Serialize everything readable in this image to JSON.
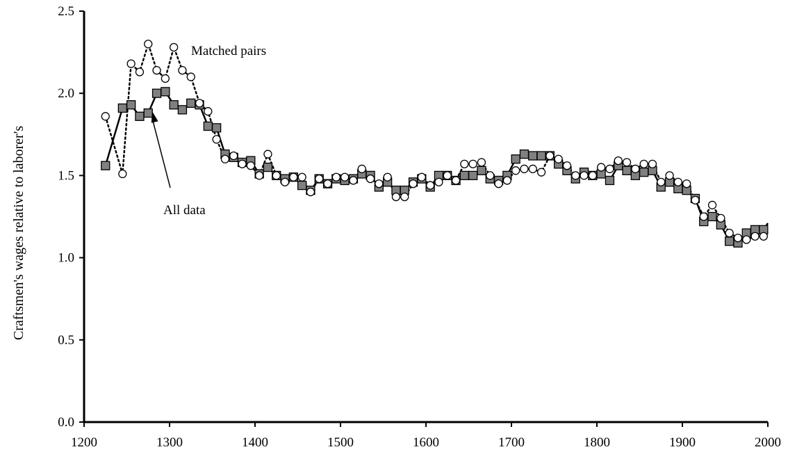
{
  "chart_data": {
    "type": "line",
    "title": "",
    "xlabel": "",
    "ylabel": "Craftsmen's wages relative to laborer's",
    "xlim": [
      1200,
      2000
    ],
    "ylim": [
      0,
      2.5
    ],
    "xticks": [
      "1200",
      "1300",
      "1400",
      "1500",
      "1600",
      "1700",
      "1800",
      "1900",
      "2000"
    ],
    "yticks": [
      "0.0",
      "0.5",
      "1.0",
      "1.5",
      "2.0",
      "2.5"
    ],
    "grid": false,
    "legend": "none",
    "annotations": [
      {
        "text": "Matched pairs",
        "series": "matched"
      },
      {
        "text": "All data",
        "series": "all"
      }
    ],
    "series": [
      {
        "key": "all",
        "marker": "square",
        "line": "solid",
        "color": "#808080",
        "points": [
          [
            1225,
            1.56
          ],
          [
            1245,
            1.91
          ],
          [
            1255,
            1.93
          ],
          [
            1265,
            1.86
          ],
          [
            1275,
            1.88
          ],
          [
            1285,
            2.0
          ],
          [
            1295,
            2.01
          ],
          [
            1305,
            1.93
          ],
          [
            1315,
            1.9
          ],
          [
            1325,
            1.94
          ],
          [
            1335,
            1.93
          ],
          [
            1345,
            1.8
          ],
          [
            1355,
            1.79
          ],
          [
            1365,
            1.63
          ],
          [
            1375,
            1.61
          ],
          [
            1385,
            1.58
          ],
          [
            1395,
            1.59
          ],
          [
            1405,
            1.51
          ],
          [
            1415,
            1.55
          ],
          [
            1425,
            1.5
          ],
          [
            1435,
            1.48
          ],
          [
            1445,
            1.49
          ],
          [
            1455,
            1.44
          ],
          [
            1465,
            1.41
          ],
          [
            1475,
            1.48
          ],
          [
            1485,
            1.45
          ],
          [
            1495,
            1.48
          ],
          [
            1505,
            1.47
          ],
          [
            1515,
            1.48
          ],
          [
            1525,
            1.51
          ],
          [
            1535,
            1.5
          ],
          [
            1545,
            1.43
          ],
          [
            1555,
            1.46
          ],
          [
            1565,
            1.41
          ],
          [
            1575,
            1.41
          ],
          [
            1585,
            1.46
          ],
          [
            1595,
            1.48
          ],
          [
            1605,
            1.43
          ],
          [
            1615,
            1.5
          ],
          [
            1625,
            1.5
          ],
          [
            1635,
            1.47
          ],
          [
            1645,
            1.5
          ],
          [
            1655,
            1.5
          ],
          [
            1665,
            1.53
          ],
          [
            1675,
            1.48
          ],
          [
            1685,
            1.47
          ],
          [
            1695,
            1.5
          ],
          [
            1705,
            1.6
          ],
          [
            1715,
            1.63
          ],
          [
            1725,
            1.62
          ],
          [
            1735,
            1.62
          ],
          [
            1745,
            1.62
          ],
          [
            1755,
            1.57
          ],
          [
            1765,
            1.53
          ],
          [
            1775,
            1.48
          ],
          [
            1785,
            1.52
          ],
          [
            1795,
            1.5
          ],
          [
            1805,
            1.51
          ],
          [
            1815,
            1.47
          ],
          [
            1825,
            1.56
          ],
          [
            1835,
            1.53
          ],
          [
            1845,
            1.5
          ],
          [
            1855,
            1.52
          ],
          [
            1865,
            1.53
          ],
          [
            1875,
            1.43
          ],
          [
            1885,
            1.46
          ],
          [
            1895,
            1.42
          ],
          [
            1905,
            1.41
          ],
          [
            1915,
            1.36
          ],
          [
            1925,
            1.22
          ],
          [
            1935,
            1.25
          ],
          [
            1945,
            1.2
          ],
          [
            1955,
            1.1
          ],
          [
            1965,
            1.09
          ],
          [
            1975,
            1.15
          ],
          [
            1985,
            1.17
          ],
          [
            1995,
            1.17
          ],
          [
            2000,
            1.21
          ]
        ]
      },
      {
        "key": "matched",
        "marker": "circle",
        "line": "dotted",
        "color": "#ffffff",
        "points": [
          [
            1225,
            1.86
          ],
          [
            1245,
            1.51
          ],
          [
            1255,
            2.18
          ],
          [
            1265,
            2.13
          ],
          [
            1275,
            2.3
          ],
          [
            1285,
            2.14
          ],
          [
            1295,
            2.09
          ],
          [
            1305,
            2.28
          ],
          [
            1315,
            2.14
          ],
          [
            1325,
            2.1
          ],
          [
            1335,
            1.94
          ],
          [
            1345,
            1.89
          ],
          [
            1355,
            1.72
          ],
          [
            1365,
            1.6
          ],
          [
            1375,
            1.62
          ],
          [
            1385,
            1.57
          ],
          [
            1395,
            1.56
          ],
          [
            1405,
            1.5
          ],
          [
            1415,
            1.63
          ],
          [
            1425,
            1.5
          ],
          [
            1435,
            1.46
          ],
          [
            1445,
            1.49
          ],
          [
            1455,
            1.49
          ],
          [
            1465,
            1.4
          ],
          [
            1475,
            1.48
          ],
          [
            1485,
            1.45
          ],
          [
            1495,
            1.49
          ],
          [
            1505,
            1.49
          ],
          [
            1515,
            1.47
          ],
          [
            1525,
            1.54
          ],
          [
            1535,
            1.48
          ],
          [
            1545,
            1.45
          ],
          [
            1555,
            1.49
          ],
          [
            1565,
            1.37
          ],
          [
            1575,
            1.37
          ],
          [
            1585,
            1.45
          ],
          [
            1595,
            1.49
          ],
          [
            1605,
            1.44
          ],
          [
            1615,
            1.46
          ],
          [
            1625,
            1.5
          ],
          [
            1635,
            1.47
          ],
          [
            1645,
            1.57
          ],
          [
            1655,
            1.57
          ],
          [
            1665,
            1.58
          ],
          [
            1675,
            1.5
          ],
          [
            1685,
            1.45
          ],
          [
            1695,
            1.47
          ],
          [
            1705,
            1.53
          ],
          [
            1715,
            1.54
          ],
          [
            1725,
            1.54
          ],
          [
            1735,
            1.52
          ],
          [
            1745,
            1.62
          ],
          [
            1755,
            1.6
          ],
          [
            1765,
            1.56
          ],
          [
            1775,
            1.5
          ],
          [
            1785,
            1.5
          ],
          [
            1795,
            1.5
          ],
          [
            1805,
            1.55
          ],
          [
            1815,
            1.54
          ],
          [
            1825,
            1.59
          ],
          [
            1835,
            1.58
          ],
          [
            1845,
            1.54
          ],
          [
            1855,
            1.57
          ],
          [
            1865,
            1.57
          ],
          [
            1875,
            1.46
          ],
          [
            1885,
            1.5
          ],
          [
            1895,
            1.46
          ],
          [
            1905,
            1.45
          ],
          [
            1915,
            1.35
          ],
          [
            1925,
            1.25
          ],
          [
            1935,
            1.32
          ],
          [
            1945,
            1.24
          ],
          [
            1955,
            1.15
          ],
          [
            1965,
            1.12
          ],
          [
            1975,
            1.11
          ],
          [
            1985,
            1.13
          ],
          [
            1995,
            1.13
          ]
        ]
      }
    ]
  }
}
